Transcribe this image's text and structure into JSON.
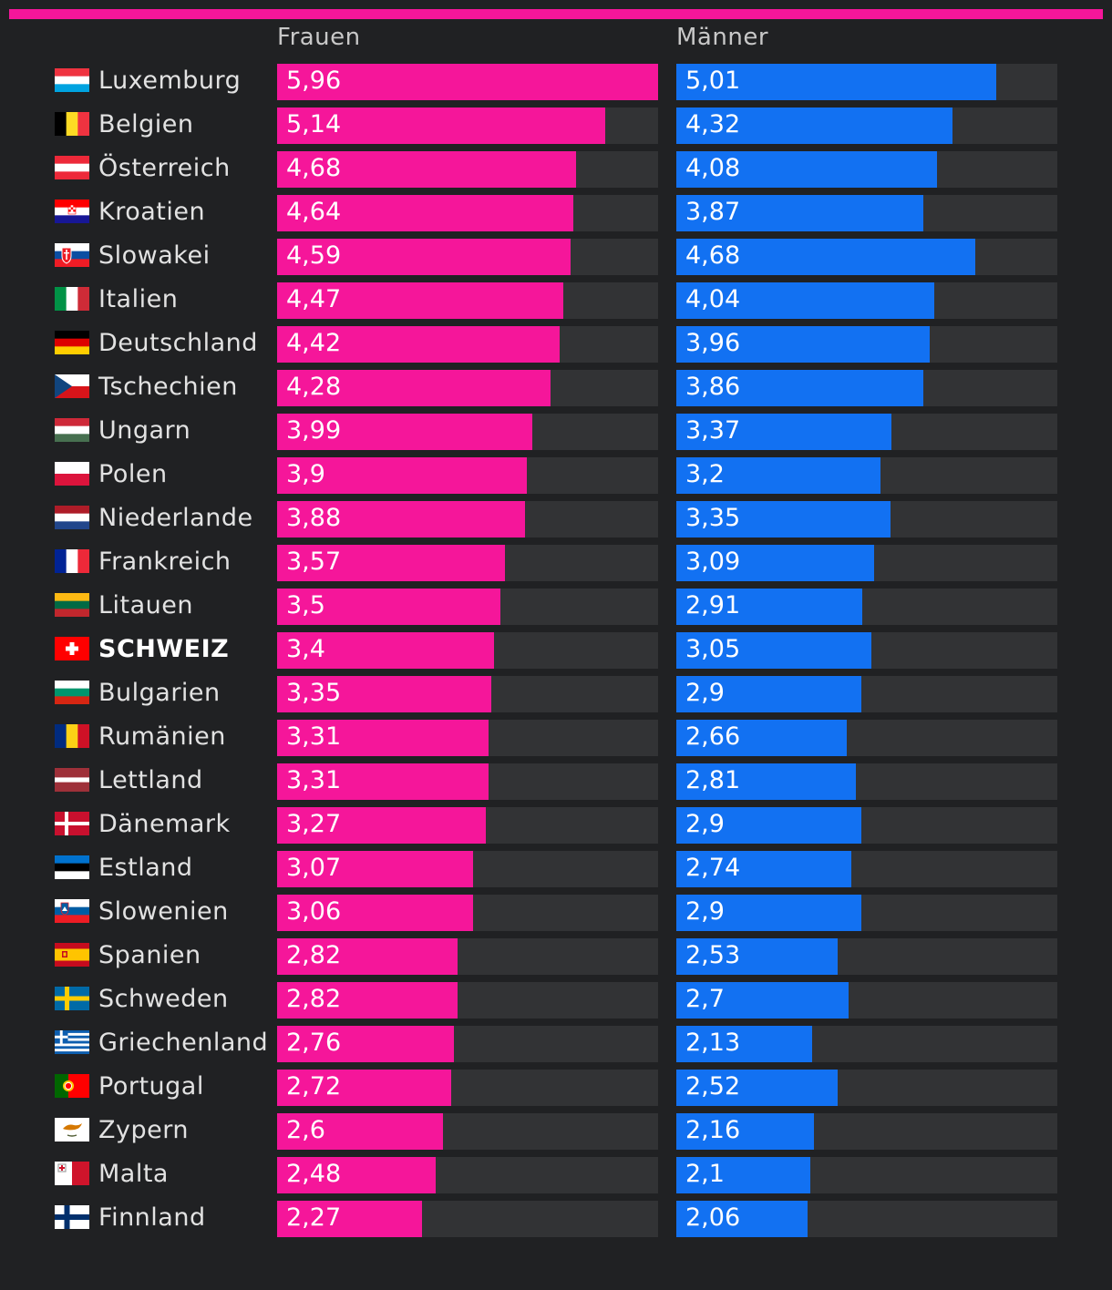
{
  "colors": {
    "accent_bar": "#f5169a",
    "women": "#f5169a",
    "men": "#1271f2",
    "track": "#323335"
  },
  "headers": {
    "women": "Frauen",
    "men": "Männer"
  },
  "chart_data": {
    "type": "bar",
    "orientation": "horizontal",
    "xlim": [
      0,
      5.96
    ],
    "series": [
      {
        "name": "Frauen",
        "color": "#f5169a",
        "values": [
          "5,96",
          "5,14",
          "4,68",
          "4,64",
          "4,59",
          "4,47",
          "4,42",
          "4,28",
          "3,99",
          "3,9",
          "3,88",
          "3,57",
          "3,5",
          "3,4",
          "3,35",
          "3,31",
          "3,31",
          "3,27",
          "3,07",
          "3,06",
          "2,82",
          "2,82",
          "2,76",
          "2,72",
          "2,6",
          "2,48",
          "2,27"
        ]
      },
      {
        "name": "Männer",
        "color": "#1271f2",
        "values": [
          "5,01",
          "4,32",
          "4,08",
          "3,87",
          "4,68",
          "4,04",
          "3,96",
          "3,86",
          "3,37",
          "3,2",
          "3,35",
          "3,09",
          "2,91",
          "3,05",
          "2,9",
          "2,66",
          "2,81",
          "2,9",
          "2,74",
          "2,9",
          "2,53",
          "2,7",
          "2,13",
          "2,52",
          "2,16",
          "2,1",
          "2,06"
        ]
      }
    ],
    "rows": [
      {
        "country": "Luxemburg",
        "flag": "luxembourg-flag-icon"
      },
      {
        "country": "Belgien",
        "flag": "belgium-flag-icon"
      },
      {
        "country": "Österreich",
        "flag": "austria-flag-icon"
      },
      {
        "country": "Kroatien",
        "flag": "croatia-flag-icon"
      },
      {
        "country": "Slowakei",
        "flag": "slovakia-flag-icon"
      },
      {
        "country": "Italien",
        "flag": "italy-flag-icon"
      },
      {
        "country": "Deutschland",
        "flag": "germany-flag-icon"
      },
      {
        "country": "Tschechien",
        "flag": "czechia-flag-icon"
      },
      {
        "country": "Ungarn",
        "flag": "hungary-flag-icon"
      },
      {
        "country": "Polen",
        "flag": "poland-flag-icon"
      },
      {
        "country": "Niederlande",
        "flag": "netherlands-flag-icon"
      },
      {
        "country": "Frankreich",
        "flag": "france-flag-icon"
      },
      {
        "country": "Litauen",
        "flag": "lithuania-flag-icon"
      },
      {
        "country": "SCHWEIZ",
        "flag": "switzerland-flag-icon",
        "highlight": true
      },
      {
        "country": "Bulgarien",
        "flag": "bulgaria-flag-icon"
      },
      {
        "country": "Rumänien",
        "flag": "romania-flag-icon"
      },
      {
        "country": "Lettland",
        "flag": "latvia-flag-icon"
      },
      {
        "country": "Dänemark",
        "flag": "denmark-flag-icon"
      },
      {
        "country": "Estland",
        "flag": "estonia-flag-icon"
      },
      {
        "country": "Slowenien",
        "flag": "slovenia-flag-icon"
      },
      {
        "country": "Spanien",
        "flag": "spain-flag-icon"
      },
      {
        "country": "Schweden",
        "flag": "sweden-flag-icon"
      },
      {
        "country": "Griechenland",
        "flag": "greece-flag-icon"
      },
      {
        "country": "Portugal",
        "flag": "portugal-flag-icon"
      },
      {
        "country": "Zypern",
        "flag": "cyprus-flag-icon"
      },
      {
        "country": "Malta",
        "flag": "malta-flag-icon"
      },
      {
        "country": "Finnland",
        "flag": "finland-flag-icon"
      }
    ]
  }
}
